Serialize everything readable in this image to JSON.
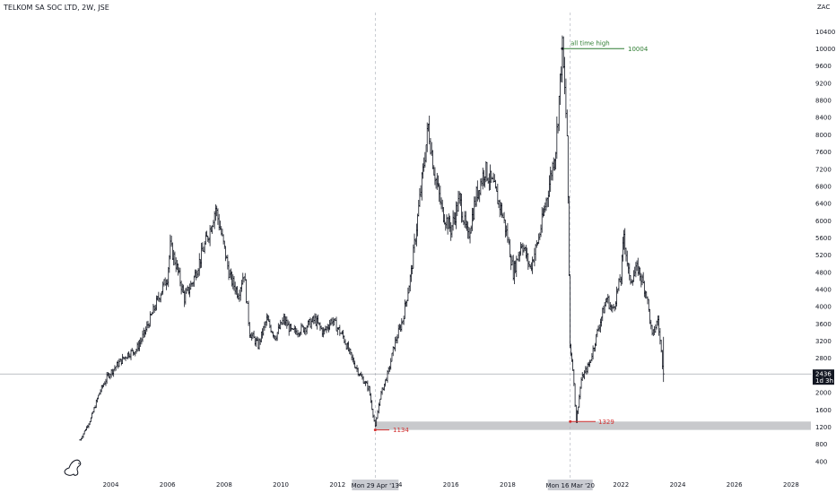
{
  "header": {
    "title": "TELKOM SA SOC LTD, 2W, JSE"
  },
  "currency_label": "ZAC",
  "current_price_label": {
    "price": "2436",
    "countdown": "1d 3h",
    "bg_color": "#131722"
  },
  "annotations": {
    "ath_text": "all time high",
    "ath_value": "10004",
    "low1_value": "1134",
    "low2_value": "1329",
    "marker_date_1": "Mon 29 Apr '13",
    "marker_date_2": "Mon 16 Mar '20",
    "colors": {
      "green": "#2e7d32",
      "red": "#d32f2f",
      "zone": "#c8c9cc"
    }
  },
  "logo": {
    "icon": "dino-logo-icon"
  },
  "chart_data": {
    "type": "ohlc",
    "title": "TELKOM SA SOC LTD, 2W, JSE",
    "y_unit": "ZAC",
    "x_ticks": [
      "2004",
      "2006",
      "2008",
      "2010",
      "2012",
      "2014",
      "2016",
      "2018",
      "2020",
      "2022",
      "2024",
      "2026",
      "2028"
    ],
    "y_ticks": [
      400,
      800,
      1200,
      1600,
      2000,
      2400,
      2800,
      3200,
      3600,
      4000,
      4400,
      4800,
      5200,
      5600,
      6000,
      6400,
      6800,
      7200,
      7600,
      8000,
      8400,
      8800,
      9200,
      9600,
      10000,
      10400
    ],
    "ylim": [
      0,
      10800
    ],
    "xlim": [
      2002.6,
      2028.7
    ],
    "grid": false,
    "series": [
      {
        "price_path": [
          [
            2002.92,
            900
          ],
          [
            2003.3,
            1400
          ],
          [
            2003.6,
            2000
          ],
          [
            2003.9,
            2400
          ],
          [
            2004.3,
            2700
          ],
          [
            2004.6,
            2900
          ],
          [
            2004.9,
            3000
          ],
          [
            2005.2,
            3400
          ],
          [
            2005.5,
            3900
          ],
          [
            2005.8,
            4400
          ],
          [
            2006.0,
            4700
          ],
          [
            2006.1,
            5400
          ],
          [
            2006.3,
            5000
          ],
          [
            2006.6,
            4200
          ],
          [
            2006.9,
            4600
          ],
          [
            2007.2,
            5200
          ],
          [
            2007.5,
            5800
          ],
          [
            2007.7,
            6300
          ],
          [
            2007.9,
            5700
          ],
          [
            2008.2,
            4700
          ],
          [
            2008.5,
            4300
          ],
          [
            2008.7,
            4800
          ],
          [
            2008.9,
            3400
          ],
          [
            2009.2,
            3100
          ],
          [
            2009.5,
            3700
          ],
          [
            2009.8,
            3300
          ],
          [
            2010.1,
            3700
          ],
          [
            2010.4,
            3400
          ],
          [
            2010.8,
            3500
          ],
          [
            2011.2,
            3700
          ],
          [
            2011.5,
            3400
          ],
          [
            2011.8,
            3700
          ],
          [
            2012.2,
            3300
          ],
          [
            2012.5,
            2800
          ],
          [
            2012.8,
            2400
          ],
          [
            2013.1,
            2100
          ],
          [
            2013.33,
            1200
          ],
          [
            2013.5,
            1900
          ],
          [
            2013.8,
            2500
          ],
          [
            2014.0,
            3100
          ],
          [
            2014.3,
            3700
          ],
          [
            2014.6,
            4800
          ],
          [
            2014.9,
            6500
          ],
          [
            2015.2,
            8200
          ],
          [
            2015.4,
            7200
          ],
          [
            2015.7,
            6200
          ],
          [
            2016.0,
            5800
          ],
          [
            2016.3,
            6500
          ],
          [
            2016.6,
            5600
          ],
          [
            2016.9,
            6600
          ],
          [
            2017.2,
            7200
          ],
          [
            2017.5,
            6800
          ],
          [
            2017.8,
            6200
          ],
          [
            2018.0,
            5600
          ],
          [
            2018.2,
            4800
          ],
          [
            2018.5,
            5500
          ],
          [
            2018.8,
            4900
          ],
          [
            2019.1,
            5600
          ],
          [
            2019.4,
            6600
          ],
          [
            2019.7,
            7700
          ],
          [
            2019.93,
            10004
          ],
          [
            2020.1,
            8000
          ],
          [
            2020.2,
            3100
          ],
          [
            2020.3,
            2600
          ],
          [
            2020.42,
            1329
          ],
          [
            2020.6,
            2300
          ],
          [
            2020.9,
            2700
          ],
          [
            2021.2,
            3500
          ],
          [
            2021.5,
            4200
          ],
          [
            2021.7,
            3900
          ],
          [
            2022.0,
            4700
          ],
          [
            2022.1,
            5700
          ],
          [
            2022.3,
            4600
          ],
          [
            2022.6,
            4900
          ],
          [
            2022.9,
            4300
          ],
          [
            2023.1,
            3300
          ],
          [
            2023.3,
            3700
          ],
          [
            2023.5,
            2436
          ]
        ]
      }
    ],
    "markers": [
      {
        "label": "all time high",
        "date": 2019.93,
        "value": 10004
      },
      {
        "label": "low",
        "date": 2013.33,
        "value": 1134
      },
      {
        "label": "low",
        "date": 2020.21,
        "value": 1329
      }
    ],
    "support_zone": [
      1134,
      1329
    ],
    "last_price": 2436
  }
}
